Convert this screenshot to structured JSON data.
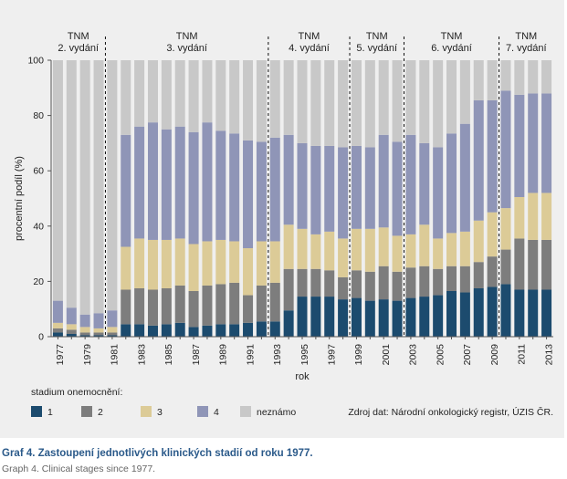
{
  "chart_data": {
    "type": "bar",
    "stacked": true,
    "xlabel": "rok",
    "ylabel": "procentní podíl (%)",
    "ylim": [
      0,
      100
    ],
    "yticks": [
      0,
      20,
      40,
      60,
      80,
      100
    ],
    "categories": [
      "1977",
      "1978",
      "1979",
      "1980",
      "1981",
      "1982",
      "1983",
      "1984",
      "1985",
      "1986",
      "1987",
      "1988",
      "1989",
      "1990",
      "1991",
      "1992",
      "1993",
      "1994",
      "1995",
      "1996",
      "1997",
      "1998",
      "1999",
      "2000",
      "2001",
      "2002",
      "2003",
      "2004",
      "2005",
      "2006",
      "2007",
      "2008",
      "2009",
      "2010",
      "2011",
      "2012",
      "2013"
    ],
    "xtick_labels": [
      "1977",
      "1979",
      "1981",
      "1983",
      "1985",
      "1987",
      "1989",
      "1991",
      "1993",
      "1995",
      "1997",
      "1999",
      "2001",
      "2003",
      "2005",
      "2007",
      "2009",
      "2011",
      "2013"
    ],
    "series": [
      {
        "name": "1",
        "color": "#1c4b6e",
        "values": [
          1.5,
          1,
          0.5,
          0.5,
          0.5,
          4.5,
          4.5,
          4,
          4.5,
          5,
          3.5,
          4,
          4.5,
          4.5,
          5,
          5.5,
          5.5,
          9.5,
          14.5,
          14.5,
          14.5,
          13.5,
          14,
          13,
          13.5,
          13,
          14,
          14.5,
          15,
          16.5,
          16,
          17.5,
          18,
          19,
          17,
          17,
          17
        ]
      },
      {
        "name": "2",
        "color": "#7d7d7d",
        "values": [
          1.5,
          1.5,
          1,
          1,
          1,
          12.5,
          13,
          13,
          13,
          13.5,
          13,
          14.5,
          14.5,
          15,
          10,
          13,
          14,
          15,
          10,
          10,
          9.5,
          8,
          10,
          10.5,
          12,
          10.5,
          11,
          11,
          9.5,
          9,
          9.5,
          9.5,
          11,
          12.5,
          18.5,
          18,
          18
        ]
      },
      {
        "name": "3",
        "color": "#dccb97",
        "values": [
          2,
          2,
          2,
          1.5,
          2,
          15.5,
          18,
          18,
          17.5,
          17,
          17,
          16,
          16,
          15,
          17,
          16,
          15,
          16,
          14.5,
          12.5,
          14,
          14,
          15,
          15.5,
          14,
          13,
          12,
          15,
          11,
          12,
          12.5,
          15,
          16,
          15,
          15,
          17,
          17
        ]
      },
      {
        "name": "4",
        "color": "#8f95b7",
        "values": [
          8,
          6,
          4.5,
          5.5,
          6,
          40.5,
          40.5,
          42.5,
          40,
          40.5,
          40.5,
          43,
          39.5,
          39,
          39,
          36,
          37.5,
          32.5,
          31,
          32,
          31,
          33,
          30,
          29.5,
          33.5,
          34,
          36,
          29.5,
          33,
          36,
          39,
          43.5,
          40.5,
          42.5,
          37,
          36,
          36
        ]
      },
      {
        "name": "neznámo",
        "color": "#c8c8c8",
        "values": [
          87,
          89.5,
          92,
          91.5,
          90.5,
          27,
          24,
          22.5,
          25,
          24,
          26,
          22.5,
          25.5,
          26.5,
          29,
          29.5,
          28,
          27,
          30,
          31,
          31,
          31.5,
          31,
          31.5,
          27,
          29.5,
          27,
          30,
          31.5,
          26.5,
          23,
          14.5,
          14.5,
          11,
          12.5,
          12,
          12
        ]
      }
    ],
    "editions": [
      {
        "line1": "TNM",
        "line2": "2. vydání",
        "from_year": "1977",
        "to_year": "1980"
      },
      {
        "line1": "TNM",
        "line2": "3. vydání",
        "from_year": "1981",
        "to_year": "1992"
      },
      {
        "line1": "TNM",
        "line2": "4. vydání",
        "from_year": "1993",
        "to_year": "1998"
      },
      {
        "line1": "TNM",
        "line2": "5. vydání",
        "from_year": "1999",
        "to_year": "2002"
      },
      {
        "line1": "TNM",
        "line2": "6. vydání",
        "from_year": "2003",
        "to_year": "2009"
      },
      {
        "line1": "TNM",
        "line2": "7. vydání",
        "from_year": "2010",
        "to_year": "2013"
      }
    ],
    "edition_boundaries": [
      1980.5,
      1992.5,
      1998.5,
      2002.5,
      2009.5
    ],
    "grid": false,
    "legend_position": "bottom-left"
  },
  "legend": {
    "title": "stadium onemocnění:",
    "items": [
      {
        "label": "1",
        "color": "#1c4b6e"
      },
      {
        "label": "2",
        "color": "#7d7d7d"
      },
      {
        "label": "3",
        "color": "#dccb97"
      },
      {
        "label": "4",
        "color": "#8f95b7"
      },
      {
        "label": "neznámo",
        "color": "#c8c8c8"
      }
    ]
  },
  "source": "Zdroj dat: Národní onkologický registr, ÚZIS ČR.",
  "caption": {
    "title": "Graf 4. Zastoupení jednotlivých klinických stadií od roku 1977.",
    "subtitle": "Graph 4. Clinical stages since 1977."
  }
}
